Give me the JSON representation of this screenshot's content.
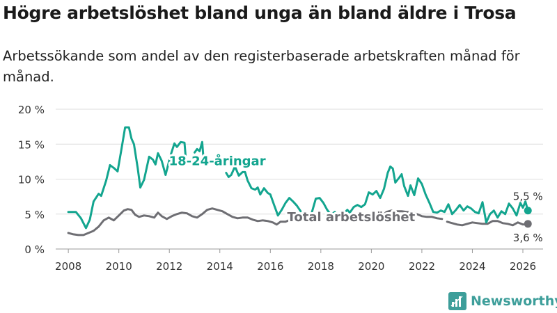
{
  "title": "Högre arbetslöshet bland unga än bland äldre i Trosa",
  "subtitle": "Arbetssökande som andel av den registerbaserade arbetskraften månad för månad.",
  "brand": "Newsworthy",
  "colors": {
    "youth": "#13a58f",
    "total": "#6e6e73",
    "grid": "#dddddd",
    "text": "#333333"
  },
  "chart_data": {
    "type": "line",
    "title": "Högre arbetslöshet bland unga än bland äldre i Trosa",
    "xlabel": "",
    "ylabel": "",
    "xlim": [
      2007.5,
      2026.8
    ],
    "ylim": [
      0,
      20
    ],
    "x_ticks": [
      2008,
      2010,
      2012,
      2014,
      2016,
      2018,
      2020,
      2022,
      2024,
      2026
    ],
    "x_tick_labels": [
      "2008",
      "2010",
      "2012",
      "2014",
      "2016",
      "2018",
      "2020",
      "2022",
      "2024",
      "2026"
    ],
    "y_ticks": [
      0,
      5,
      10,
      15,
      20
    ],
    "y_tick_labels": [
      "0 %",
      "5 %",
      "10 %",
      "15 %",
      "20 %"
    ],
    "grid": true,
    "series": [
      {
        "name": "18-24-åringar",
        "color": "#13a58f",
        "end_label": "5,5 %",
        "points": [
          [
            2008.0,
            5.3
          ],
          [
            2008.3,
            5.3
          ],
          [
            2008.5,
            4.4
          ],
          [
            2008.7,
            3.0
          ],
          [
            2008.85,
            4.2
          ],
          [
            2009.0,
            6.8
          ],
          [
            2009.2,
            7.9
          ],
          [
            2009.3,
            7.6
          ],
          [
            2009.5,
            9.8
          ],
          [
            2009.65,
            12.0
          ],
          [
            2009.8,
            11.6
          ],
          [
            2009.95,
            11.1
          ],
          [
            2010.1,
            14.2
          ],
          [
            2010.25,
            17.4
          ],
          [
            2010.4,
            17.4
          ],
          [
            2010.5,
            15.8
          ],
          [
            2010.6,
            15.0
          ],
          [
            2010.75,
            11.5
          ],
          [
            2010.85,
            8.8
          ],
          [
            2011.0,
            9.9
          ],
          [
            2011.2,
            13.2
          ],
          [
            2011.35,
            12.8
          ],
          [
            2011.45,
            12.1
          ],
          [
            2011.55,
            13.7
          ],
          [
            2011.7,
            12.6
          ],
          [
            2011.85,
            10.6
          ],
          [
            2012.05,
            13.4
          ],
          [
            2012.2,
            15.1
          ],
          [
            2012.3,
            14.6
          ],
          [
            2012.45,
            15.3
          ],
          [
            2012.6,
            15.2
          ],
          [
            2012.65,
            13.0
          ],
          [
            null,
            null
          ],
          [
            2013.0,
            13.8
          ],
          [
            2013.1,
            14.3
          ],
          [
            2013.2,
            14.0
          ],
          [
            2013.3,
            15.3
          ],
          [
            2013.35,
            13.0
          ],
          [
            null,
            null
          ],
          [
            2014.25,
            10.9
          ],
          [
            2014.35,
            10.3
          ],
          [
            2014.45,
            10.6
          ],
          [
            2014.6,
            11.8
          ],
          [
            2014.75,
            10.5
          ],
          [
            2014.9,
            11.0
          ],
          [
            2015.0,
            11.0
          ],
          [
            2015.1,
            9.8
          ],
          [
            2015.25,
            8.7
          ],
          [
            2015.4,
            8.5
          ],
          [
            2015.5,
            8.8
          ],
          [
            2015.6,
            7.8
          ],
          [
            2015.75,
            8.7
          ],
          [
            2015.9,
            8.0
          ],
          [
            2016.0,
            7.8
          ],
          [
            2016.15,
            6.3
          ],
          [
            2016.3,
            4.8
          ],
          [
            2016.45,
            5.6
          ],
          [
            2016.6,
            6.6
          ],
          [
            2016.75,
            7.3
          ],
          [
            2016.9,
            6.8
          ],
          [
            2017.05,
            6.2
          ],
          [
            2017.2,
            5.4
          ],
          [
            null,
            null
          ],
          [
            2017.65,
            5.3
          ],
          [
            2017.8,
            7.2
          ],
          [
            2017.95,
            7.3
          ],
          [
            2018.1,
            6.6
          ],
          [
            2018.25,
            5.6
          ],
          [
            2018.4,
            4.9
          ],
          [
            2018.55,
            5.3
          ],
          [
            null,
            null
          ],
          [
            2018.9,
            5.1
          ],
          [
            2019.05,
            5.6
          ],
          [
            2019.15,
            5.2
          ],
          [
            2019.3,
            6.0
          ],
          [
            2019.45,
            6.3
          ],
          [
            2019.6,
            6.0
          ],
          [
            2019.75,
            6.4
          ],
          [
            2019.9,
            8.1
          ],
          [
            2020.05,
            7.8
          ],
          [
            2020.2,
            8.3
          ],
          [
            2020.35,
            7.3
          ],
          [
            2020.5,
            8.6
          ],
          [
            2020.65,
            10.9
          ],
          [
            2020.75,
            11.8
          ],
          [
            2020.85,
            11.5
          ],
          [
            2020.95,
            9.5
          ],
          [
            2021.1,
            10.2
          ],
          [
            2021.2,
            10.7
          ],
          [
            2021.3,
            9.0
          ],
          [
            2021.45,
            7.6
          ],
          [
            2021.55,
            9.1
          ],
          [
            2021.7,
            7.7
          ],
          [
            2021.85,
            10.1
          ],
          [
            2022.0,
            9.3
          ],
          [
            2022.15,
            7.8
          ],
          [
            2022.3,
            6.6
          ],
          [
            2022.45,
            5.3
          ],
          [
            2022.6,
            5.2
          ],
          [
            2022.75,
            5.5
          ],
          [
            2022.9,
            5.3
          ],
          [
            2023.05,
            6.4
          ],
          [
            2023.2,
            5.0
          ],
          [
            2023.35,
            5.6
          ],
          [
            2023.5,
            6.3
          ],
          [
            2023.65,
            5.5
          ],
          [
            2023.8,
            6.1
          ],
          [
            2023.95,
            5.8
          ],
          [
            2024.1,
            5.3
          ],
          [
            2024.25,
            5.1
          ],
          [
            2024.4,
            6.7
          ],
          [
            2024.55,
            3.8
          ],
          [
            2024.7,
            5.0
          ],
          [
            2024.85,
            5.5
          ],
          [
            2025.0,
            4.5
          ],
          [
            2025.15,
            5.4
          ],
          [
            2025.3,
            5.0
          ],
          [
            2025.45,
            6.5
          ],
          [
            2025.6,
            5.8
          ],
          [
            2025.75,
            4.8
          ],
          [
            2025.9,
            6.6
          ],
          [
            2026.0,
            5.9
          ],
          [
            2026.1,
            6.8
          ],
          [
            2026.2,
            5.5
          ]
        ]
      },
      {
        "name": "Total arbetslöshet",
        "color": "#6e6e73",
        "end_label": "3,6 %",
        "points": [
          [
            2008.0,
            2.3
          ],
          [
            2008.2,
            2.1
          ],
          [
            2008.4,
            2.0
          ],
          [
            2008.6,
            2.0
          ],
          [
            2008.8,
            2.3
          ],
          [
            2009.0,
            2.6
          ],
          [
            2009.2,
            3.2
          ],
          [
            2009.4,
            4.1
          ],
          [
            2009.6,
            4.5
          ],
          [
            2009.8,
            4.1
          ],
          [
            2010.0,
            4.8
          ],
          [
            2010.2,
            5.5
          ],
          [
            2010.35,
            5.7
          ],
          [
            2010.5,
            5.6
          ],
          [
            2010.65,
            4.9
          ],
          [
            2010.8,
            4.6
          ],
          [
            2011.0,
            4.8
          ],
          [
            2011.2,
            4.7
          ],
          [
            2011.4,
            4.5
          ],
          [
            2011.55,
            5.2
          ],
          [
            2011.7,
            4.7
          ],
          [
            2011.9,
            4.3
          ],
          [
            2012.1,
            4.7
          ],
          [
            2012.3,
            5.0
          ],
          [
            2012.5,
            5.2
          ],
          [
            2012.7,
            5.1
          ],
          [
            2012.9,
            4.7
          ],
          [
            2013.1,
            4.5
          ],
          [
            2013.3,
            5.0
          ],
          [
            2013.5,
            5.6
          ],
          [
            2013.7,
            5.8
          ],
          [
            2013.9,
            5.6
          ],
          [
            2014.1,
            5.4
          ],
          [
            2014.3,
            5.0
          ],
          [
            2014.5,
            4.6
          ],
          [
            2014.7,
            4.4
          ],
          [
            2014.9,
            4.5
          ],
          [
            2015.1,
            4.5
          ],
          [
            2015.3,
            4.2
          ],
          [
            2015.5,
            4.0
          ],
          [
            2015.7,
            4.1
          ],
          [
            2015.9,
            4.0
          ],
          [
            2016.1,
            3.8
          ],
          [
            2016.25,
            3.5
          ],
          [
            2016.4,
            3.9
          ],
          [
            2016.6,
            3.9
          ],
          [
            2016.8,
            4.2
          ],
          [
            2017.0,
            4.0
          ],
          [
            2017.2,
            4.0
          ],
          [
            null,
            null
          ],
          [
            2020.4,
            4.6
          ],
          [
            2020.6,
            5.3
          ],
          [
            2020.8,
            5.5
          ],
          [
            2021.0,
            5.4
          ],
          [
            2021.2,
            5.4
          ],
          [
            2021.4,
            5.3
          ],
          [
            2021.6,
            5.3
          ],
          [
            2021.8,
            5.0
          ],
          [
            2022.0,
            4.7
          ],
          [
            2022.2,
            4.6
          ],
          [
            2022.4,
            4.6
          ],
          [
            2022.6,
            4.4
          ],
          [
            2022.8,
            4.3
          ],
          [
            null,
            null
          ],
          [
            2023.0,
            3.9
          ],
          [
            2023.2,
            3.7
          ],
          [
            2023.4,
            3.5
          ],
          [
            2023.6,
            3.4
          ],
          [
            2023.8,
            3.6
          ],
          [
            2024.0,
            3.8
          ],
          [
            2024.2,
            3.7
          ],
          [
            2024.4,
            3.6
          ],
          [
            2024.6,
            3.6
          ],
          [
            2024.8,
            4.0
          ],
          [
            2025.0,
            4.0
          ],
          [
            2025.2,
            3.7
          ],
          [
            2025.4,
            3.6
          ],
          [
            2025.6,
            3.4
          ],
          [
            2025.8,
            3.8
          ],
          [
            2026.0,
            3.5
          ],
          [
            2026.2,
            3.6
          ]
        ]
      }
    ],
    "annotations": [
      {
        "text": "18-24-åringar",
        "series": 0,
        "x": 2013.9,
        "y": 12.0
      },
      {
        "text": "Total arbetslöshet",
        "series": 1,
        "x": 2019.2,
        "y": 4.0
      }
    ]
  }
}
